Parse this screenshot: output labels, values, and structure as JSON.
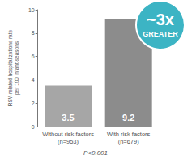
{
  "chart_data": {
    "type": "bar",
    "ylabel": "RSV-related hospitalizations rate\nper 100 infant-seasons",
    "categories": [
      "Without risk factors\n(n=953)",
      "With risk factors\n(n=679)"
    ],
    "values": [
      3.5,
      9.2
    ],
    "colors": [
      "#a6a6a6",
      "#8c8c8c"
    ],
    "ylim": [
      0,
      10
    ],
    "yticks": [
      0,
      2,
      4,
      6,
      8,
      10
    ],
    "grid": false,
    "data_labels": true,
    "annotations": [
      "~3x",
      "GREATER",
      "P<0.001"
    ]
  }
}
